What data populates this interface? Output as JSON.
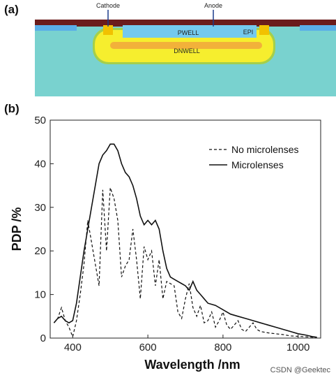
{
  "figure": {
    "panel_a_label": "(a)",
    "panel_b_label": "(b)",
    "watermark": "CSDN @Geektec"
  },
  "device": {
    "cathode": "Cathode",
    "anode": "Anode",
    "pwell": "PWELL",
    "epi": "EPI",
    "dnwell": "DNWELL",
    "colors": {
      "substrate": "#79d2cf",
      "dnwell": "#f6ee2e",
      "pwell": "#74c9ee",
      "top_layer": "#6b1c1c",
      "contact": "#f2c100"
    }
  },
  "chart_data": {
    "type": "line",
    "xlabel": "Wavelength /nm",
    "ylabel": "PDP /%",
    "xlim": [
      340,
      1060
    ],
    "ylim": [
      0,
      50
    ],
    "xticks": [
      400,
      600,
      800,
      1000
    ],
    "yticks": [
      0,
      10,
      20,
      30,
      40,
      50
    ],
    "grid": false,
    "legend_position": "top-right",
    "series": [
      {
        "name": "No microlenses",
        "style": "dashed",
        "x": [
          350,
          360,
          370,
          380,
          390,
          400,
          410,
          420,
          430,
          440,
          450,
          460,
          470,
          480,
          490,
          500,
          510,
          520,
          530,
          540,
          550,
          560,
          570,
          580,
          590,
          600,
          610,
          620,
          630,
          640,
          650,
          660,
          670,
          680,
          690,
          700,
          710,
          720,
          730,
          740,
          750,
          760,
          770,
          780,
          790,
          800,
          810,
          820,
          830,
          840,
          850,
          860,
          870,
          880,
          890,
          900,
          920,
          940,
          960,
          980,
          1000,
          1020,
          1040,
          1050
        ],
        "y": [
          3.5,
          4.5,
          7.0,
          4.0,
          2.5,
          0.3,
          4.0,
          10.0,
          17.0,
          27.0,
          22.0,
          17.0,
          12.0,
          34.0,
          20.0,
          34.5,
          32.0,
          27.0,
          14.0,
          16.5,
          18.0,
          25.0,
          18.0,
          9.0,
          21.0,
          18.0,
          20.0,
          12.0,
          18.0,
          9.0,
          13.0,
          12.5,
          12.0,
          6.0,
          4.5,
          9.0,
          12.5,
          7.0,
          5.0,
          7.5,
          3.5,
          4.0,
          6.0,
          2.5,
          4.0,
          6.0,
          3.0,
          2.0,
          3.0,
          4.0,
          2.0,
          1.5,
          2.5,
          3.5,
          2.0,
          1.5,
          1.2,
          1.0,
          0.8,
          0.5,
          0.4,
          0.3,
          0.2,
          0.2
        ]
      },
      {
        "name": "Microlenses",
        "style": "solid",
        "x": [
          350,
          360,
          370,
          380,
          390,
          400,
          410,
          420,
          430,
          440,
          450,
          460,
          470,
          480,
          490,
          500,
          510,
          520,
          530,
          540,
          550,
          560,
          570,
          580,
          590,
          600,
          610,
          620,
          630,
          640,
          650,
          660,
          670,
          680,
          690,
          700,
          710,
          720,
          730,
          740,
          750,
          760,
          780,
          800,
          820,
          840,
          860,
          880,
          900,
          920,
          940,
          960,
          980,
          1000,
          1020,
          1040,
          1050
        ],
        "y": [
          3.5,
          4.5,
          5.0,
          4.0,
          3.5,
          4.0,
          8.0,
          14.0,
          20.0,
          25.0,
          30.0,
          35.0,
          40.0,
          42.0,
          43.0,
          44.5,
          44.5,
          43.0,
          40.0,
          38.0,
          37.0,
          35.0,
          32.0,
          28.0,
          26.0,
          27.0,
          26.0,
          27.0,
          25.0,
          20.0,
          16.0,
          14.0,
          13.5,
          13.0,
          12.5,
          12.0,
          11.0,
          13.0,
          11.0,
          10.0,
          9.0,
          8.0,
          7.5,
          6.5,
          5.5,
          5.0,
          4.5,
          4.0,
          3.5,
          3.0,
          2.5,
          2.0,
          1.5,
          1.0,
          0.7,
          0.3,
          0.2
        ]
      }
    ]
  }
}
